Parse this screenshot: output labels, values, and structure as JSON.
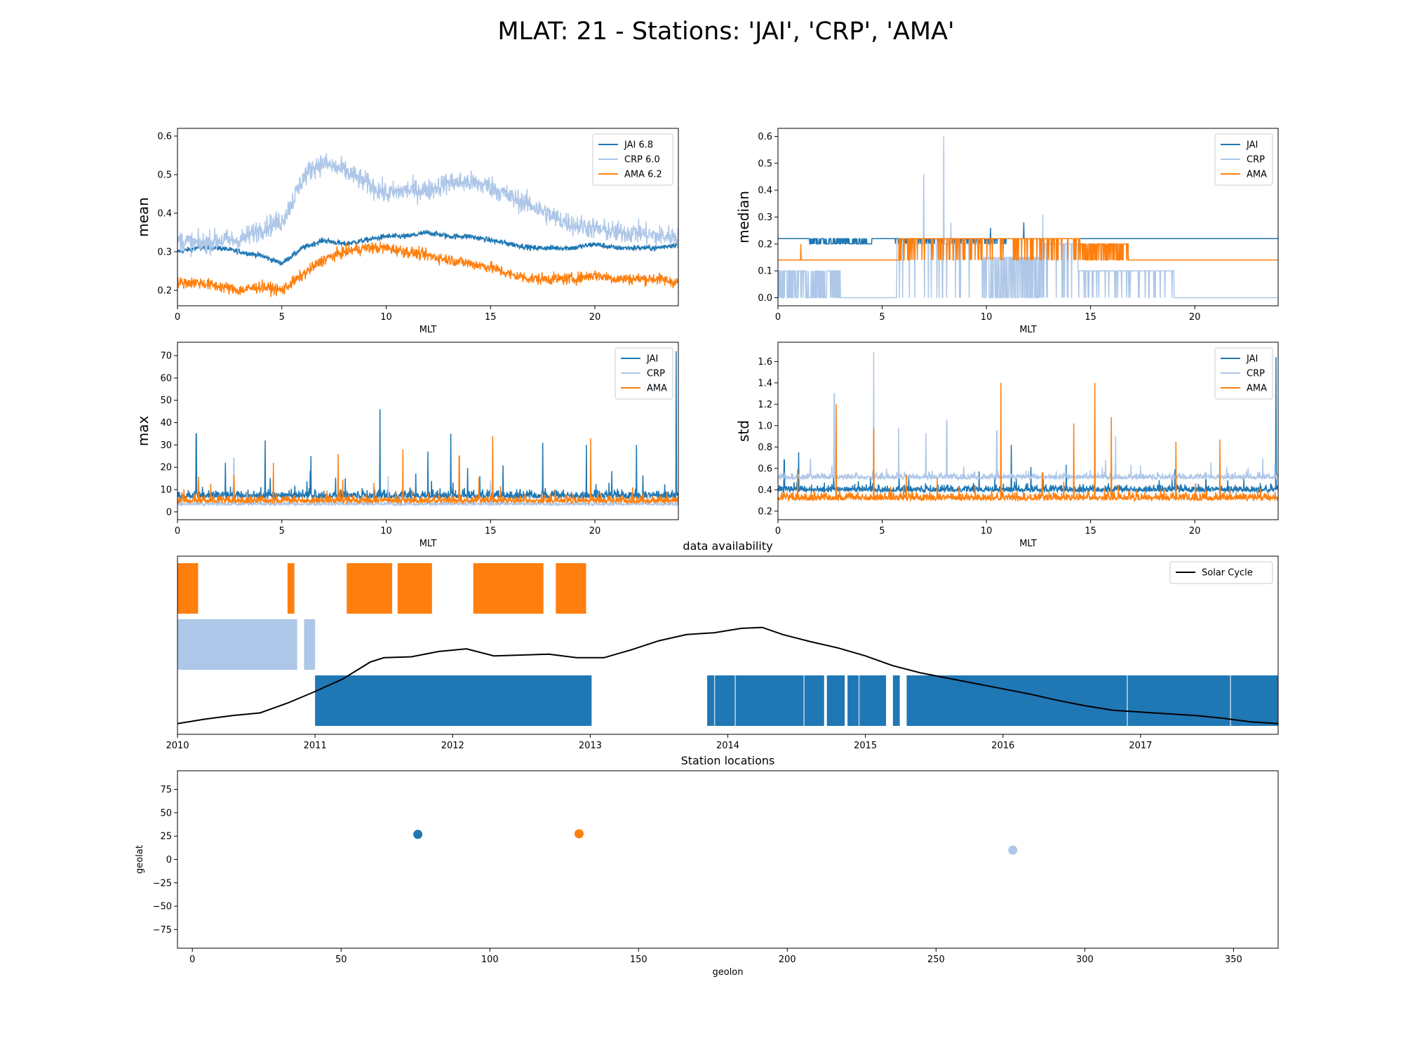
{
  "figure": {
    "suptitle": "MLAT: 21 - Stations: 'JAI', 'CRP', 'AMA'",
    "colors": {
      "JAI": "#1f77b4",
      "CRP": "#aec7e8",
      "AMA": "#ff7f0e",
      "solar": "#000000"
    }
  },
  "chart_data": [
    {
      "id": "mean",
      "type": "line",
      "xlabel": "MLT",
      "ylabel": "mean",
      "xlim": [
        0,
        24
      ],
      "ylim": [
        0.16,
        0.62
      ],
      "xticks": [
        0,
        5,
        10,
        15,
        20
      ],
      "yticks": [
        0.2,
        0.3,
        0.4,
        0.5,
        0.6
      ],
      "legend": {
        "position": "top-right",
        "entries": [
          "JAI 6.8",
          "CRP 6.0",
          "AMA 6.2"
        ]
      },
      "series": [
        {
          "name": "JAI 6.8",
          "color": "#1f77b4",
          "noise": 0.007,
          "x": [
            0,
            1,
            2,
            3,
            4,
            4.5,
            5,
            5.5,
            6,
            6.5,
            7,
            8,
            9,
            10,
            11,
            12,
            13,
            14,
            15,
            16,
            17,
            18,
            19,
            20,
            21,
            22,
            23,
            24
          ],
          "y": [
            0.3,
            0.31,
            0.31,
            0.3,
            0.29,
            0.28,
            0.27,
            0.29,
            0.31,
            0.32,
            0.33,
            0.32,
            0.33,
            0.34,
            0.34,
            0.35,
            0.34,
            0.34,
            0.33,
            0.32,
            0.31,
            0.31,
            0.31,
            0.32,
            0.31,
            0.31,
            0.31,
            0.32
          ]
        },
        {
          "name": "CRP 6.0",
          "color": "#aec7e8",
          "noise": 0.028,
          "x": [
            0,
            1,
            2,
            3,
            4,
            5,
            5.5,
            6,
            6.5,
            7,
            8,
            9,
            10,
            11,
            12,
            13,
            14,
            15,
            16,
            17,
            18,
            19,
            20,
            21,
            22,
            23,
            24
          ],
          "y": [
            0.33,
            0.32,
            0.33,
            0.33,
            0.36,
            0.38,
            0.43,
            0.49,
            0.52,
            0.53,
            0.51,
            0.48,
            0.45,
            0.46,
            0.46,
            0.48,
            0.48,
            0.47,
            0.44,
            0.42,
            0.39,
            0.37,
            0.36,
            0.35,
            0.35,
            0.34,
            0.34
          ]
        },
        {
          "name": "AMA 6.2",
          "color": "#ff7f0e",
          "noise": 0.015,
          "x": [
            0,
            1,
            2,
            3,
            4,
            5,
            5.5,
            6,
            6.5,
            7,
            8,
            9,
            10,
            11,
            12,
            13,
            14,
            15,
            16,
            17,
            18,
            19,
            20,
            21,
            22,
            23,
            24
          ],
          "y": [
            0.22,
            0.22,
            0.21,
            0.2,
            0.21,
            0.2,
            0.22,
            0.24,
            0.26,
            0.28,
            0.3,
            0.31,
            0.31,
            0.3,
            0.29,
            0.28,
            0.27,
            0.26,
            0.24,
            0.23,
            0.23,
            0.23,
            0.24,
            0.23,
            0.23,
            0.23,
            0.22
          ]
        }
      ]
    },
    {
      "id": "median",
      "type": "line",
      "xlabel": "MLT",
      "ylabel": "median",
      "xlim": [
        0,
        24
      ],
      "ylim": [
        -0.03,
        0.63
      ],
      "xticks": [
        0,
        5,
        10,
        15,
        20
      ],
      "yticks": [
        0.0,
        0.1,
        0.2,
        0.3,
        0.4,
        0.5,
        0.6
      ],
      "legend": {
        "position": "top-right",
        "entries": [
          "JAI",
          "CRP",
          "AMA"
        ]
      },
      "series": [
        {
          "name": "JAI",
          "color": "#1f77b4",
          "base": 0.22,
          "segments": [
            {
              "from": 1.5,
              "to": 4.5,
              "value": 0.2,
              "prob": 0.6
            },
            {
              "from": 5.5,
              "to": 11,
              "value": 0.2,
              "prob": 0.2
            }
          ],
          "spikes": [
            {
              "x": 10.2,
              "value": 0.26
            },
            {
              "x": 11.8,
              "value": 0.28
            }
          ]
        },
        {
          "name": "CRP",
          "color": "#aec7e8",
          "base": 0.0,
          "segments": [
            {
              "from": 0,
              "to": 3,
              "value": 0.1,
              "prob": 0.5
            },
            {
              "from": 3,
              "to": 5.7,
              "value": 0.0,
              "prob": 1.0
            },
            {
              "from": 5.7,
              "to": 9.8,
              "value": 0.2,
              "prob": 0.9
            },
            {
              "from": 9.8,
              "to": 12.8,
              "value": 0.15,
              "prob": 0.6
            },
            {
              "from": 12.8,
              "to": 14.4,
              "value": 0.2,
              "prob": 0.9
            },
            {
              "from": 14.4,
              "to": 19,
              "value": 0.1,
              "prob": 0.9
            },
            {
              "from": 19.2,
              "to": 24,
              "value": 0.0,
              "prob": 1.0
            }
          ],
          "spikes": [
            {
              "x": 7.0,
              "value": 0.46
            },
            {
              "x": 7.95,
              "value": 0.6
            },
            {
              "x": 8.3,
              "value": 0.28
            },
            {
              "x": 12.7,
              "value": 0.31
            }
          ]
        },
        {
          "name": "AMA",
          "color": "#ff7f0e",
          "base": 0.14,
          "segments": [
            {
              "from": 5.8,
              "to": 14.5,
              "value": 0.22,
              "prob": 0.85
            },
            {
              "from": 14.5,
              "to": 16.8,
              "value": 0.2,
              "prob": 0.6
            }
          ],
          "spikes": [
            {
              "x": 1.1,
              "value": 0.2
            }
          ]
        }
      ]
    },
    {
      "id": "max",
      "type": "line",
      "xlabel": "MLT",
      "ylabel": "max",
      "xlim": [
        0,
        24
      ],
      "ylim": [
        -3.5,
        76
      ],
      "xticks": [
        0,
        5,
        10,
        15,
        20
      ],
      "yticks": [
        0,
        10,
        20,
        30,
        40,
        50,
        60,
        70
      ],
      "legend": {
        "position": "top-right",
        "entries": [
          "JAI",
          "CRP",
          "AMA"
        ]
      },
      "series": [
        {
          "name": "JAI",
          "color": "#1f77b4",
          "base": 6,
          "noise": 3.5,
          "spikes": [
            {
              "x": 0.9,
              "value": 35
            },
            {
              "x": 4.2,
              "value": 32
            },
            {
              "x": 9.7,
              "value": 46
            },
            {
              "x": 13.1,
              "value": 35
            },
            {
              "x": 17.5,
              "value": 31
            },
            {
              "x": 19.6,
              "value": 30
            },
            {
              "x": 22.0,
              "value": 30
            },
            {
              "x": 23.9,
              "value": 72
            },
            {
              "x": 2.3,
              "value": 22
            },
            {
              "x": 6.4,
              "value": 25
            },
            {
              "x": 12.0,
              "value": 27
            }
          ]
        },
        {
          "name": "CRP",
          "color": "#aec7e8",
          "base": 3,
          "noise": 1.5,
          "spikes": [
            {
              "x": 2.7,
              "value": 24
            },
            {
              "x": 10.1,
              "value": 16
            },
            {
              "x": 15.0,
              "value": 14
            }
          ]
        },
        {
          "name": "AMA",
          "color": "#ff7f0e",
          "base": 4,
          "noise": 3,
          "spikes": [
            {
              "x": 7.7,
              "value": 26
            },
            {
              "x": 10.8,
              "value": 28
            },
            {
              "x": 15.1,
              "value": 34
            },
            {
              "x": 19.8,
              "value": 33
            },
            {
              "x": 4.6,
              "value": 22
            },
            {
              "x": 13.5,
              "value": 25
            }
          ]
        }
      ]
    },
    {
      "id": "std",
      "type": "line",
      "xlabel": "MLT",
      "ylabel": "std",
      "xlim": [
        0,
        24
      ],
      "ylim": [
        0.12,
        1.78
      ],
      "xticks": [
        0,
        5,
        10,
        15,
        20
      ],
      "yticks": [
        0.2,
        0.4,
        0.6,
        0.8,
        1.0,
        1.2,
        1.4,
        1.6
      ],
      "legend": {
        "position": "top-right",
        "entries": [
          "JAI",
          "CRP",
          "AMA"
        ]
      },
      "series": [
        {
          "name": "JAI",
          "color": "#1f77b4",
          "base": 0.38,
          "noise": 0.06,
          "spikes": [
            {
              "x": 0.3,
              "value": 0.68
            },
            {
              "x": 1.0,
              "value": 0.75
            },
            {
              "x": 23.9,
              "value": 1.64
            },
            {
              "x": 11.2,
              "value": 0.82
            }
          ]
        },
        {
          "name": "CRP",
          "color": "#aec7e8",
          "base": 0.5,
          "noise": 0.05,
          "spikes": [
            {
              "x": 2.7,
              "value": 1.3
            },
            {
              "x": 4.6,
              "value": 1.69
            },
            {
              "x": 5.8,
              "value": 0.98
            },
            {
              "x": 7.1,
              "value": 0.93
            },
            {
              "x": 8.1,
              "value": 1.05
            },
            {
              "x": 10.5,
              "value": 0.95
            },
            {
              "x": 15.2,
              "value": 1.18
            },
            {
              "x": 16.2,
              "value": 0.9
            }
          ]
        },
        {
          "name": "AMA",
          "color": "#ff7f0e",
          "base": 0.3,
          "noise": 0.07,
          "spikes": [
            {
              "x": 2.8,
              "value": 1.2
            },
            {
              "x": 4.6,
              "value": 0.98
            },
            {
              "x": 10.7,
              "value": 1.4
            },
            {
              "x": 14.2,
              "value": 1.02
            },
            {
              "x": 15.2,
              "value": 1.4
            },
            {
              "x": 16.0,
              "value": 1.08
            },
            {
              "x": 19.1,
              "value": 0.85
            },
            {
              "x": 21.2,
              "value": 0.87
            }
          ]
        }
      ]
    },
    {
      "id": "availability",
      "type": "bar",
      "title": "data availability",
      "xlim": [
        2010.0,
        2018.0
      ],
      "xticks": [
        2010,
        2011,
        2012,
        2013,
        2014,
        2015,
        2016,
        2017
      ],
      "xticklabels": [
        "2010",
        "2011",
        "2012",
        "2013",
        "2014",
        "2015",
        "2016",
        "2017"
      ],
      "legend": {
        "position": "top-right",
        "entries": [
          "Solar Cycle"
        ]
      },
      "rows": [
        {
          "name": "AMA",
          "color": "#ff7f0e",
          "intervals": [
            [
              2010.0,
              2010.15
            ],
            [
              2010.8,
              2010.85
            ],
            [
              2011.23,
              2011.56
            ],
            [
              2011.6,
              2011.85
            ],
            [
              2012.15,
              2012.66
            ],
            [
              2012.75,
              2012.97
            ]
          ]
        },
        {
          "name": "CRP",
          "color": "#aec7e8",
          "intervals": [
            [
              2010.0,
              2010.87
            ],
            [
              2010.92,
              2011.0
            ]
          ]
        },
        {
          "name": "JAI",
          "color": "#1f77b4",
          "intervals": [
            [
              2011.0,
              2013.01
            ],
            [
              2013.85,
              2014.7
            ],
            [
              2014.72,
              2014.85
            ],
            [
              2014.87,
              2015.15
            ],
            [
              2015.2,
              2015.25
            ],
            [
              2015.3,
              2018.0
            ]
          ]
        }
      ],
      "solar_cycle": {
        "name": "Solar Cycle",
        "x": [
          2010.0,
          2010.2,
          2010.4,
          2010.6,
          2010.8,
          2011.0,
          2011.2,
          2011.4,
          2011.5,
          2011.7,
          2011.9,
          2012.1,
          2012.3,
          2012.5,
          2012.7,
          2012.9,
          2013.1,
          2013.3,
          2013.5,
          2013.7,
          2013.9,
          2014.1,
          2014.25,
          2014.4,
          2014.6,
          2014.8,
          2015.0,
          2015.2,
          2015.4,
          2015.6,
          2015.8,
          2016.0,
          2016.2,
          2016.4,
          2016.6,
          2016.8,
          2017.0,
          2017.2,
          2017.4,
          2017.6,
          2017.8,
          2018.0
        ],
        "y": [
          0.12,
          0.17,
          0.21,
          0.24,
          0.35,
          0.48,
          0.62,
          0.81,
          0.86,
          0.87,
          0.93,
          0.96,
          0.88,
          0.89,
          0.9,
          0.86,
          0.86,
          0.95,
          1.05,
          1.12,
          1.14,
          1.19,
          1.2,
          1.12,
          1.04,
          0.97,
          0.88,
          0.77,
          0.69,
          0.63,
          0.57,
          0.51,
          0.45,
          0.38,
          0.32,
          0.27,
          0.25,
          0.23,
          0.21,
          0.18,
          0.14,
          0.12
        ],
        "ylim": [
          0,
          1.9
        ]
      }
    },
    {
      "id": "locations",
      "type": "scatter",
      "title": "Station locations",
      "xlabel": "geolon",
      "ylabel": "geolat",
      "xlim": [
        -5,
        365
      ],
      "ylim": [
        -95,
        95
      ],
      "xticks": [
        0,
        50,
        100,
        150,
        200,
        250,
        300,
        350
      ],
      "yticks": [
        75,
        50,
        25,
        0,
        -25,
        -50,
        -75
      ],
      "points": [
        {
          "name": "JAI",
          "x": 75.8,
          "y": 26.9,
          "color": "#1f77b4"
        },
        {
          "name": "AMA",
          "x": 130.0,
          "y": 27.5,
          "color": "#ff7f0e"
        },
        {
          "name": "CRP",
          "x": 275.8,
          "y": 10.0,
          "color": "#aec7e8"
        }
      ]
    }
  ]
}
